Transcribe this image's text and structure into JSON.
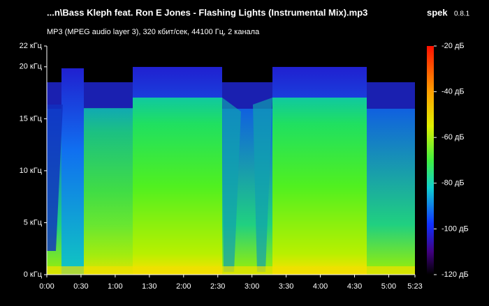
{
  "chart_data": {
    "type": "spectrogram",
    "title": "...n\\Bass Kleph feat. Ron E Jones - Flashing Lights (Instrumental Mix).mp3",
    "app_name": "spek",
    "app_version": "0.8.1",
    "subtitle": "MP3 (MPEG audio layer 3), 320 кбит/сек, 44100 Гц, 2 канала",
    "xlim": [
      0,
      323
    ],
    "xticks": [
      {
        "value": 0,
        "label": "0:00"
      },
      {
        "value": 30,
        "label": "0:30"
      },
      {
        "value": 60,
        "label": "1:00"
      },
      {
        "value": 90,
        "label": "1:30"
      },
      {
        "value": 120,
        "label": "2:00"
      },
      {
        "value": 150,
        "label": "2:30"
      },
      {
        "value": 180,
        "label": "3:00"
      },
      {
        "value": 210,
        "label": "3:30"
      },
      {
        "value": 240,
        "label": "4:00"
      },
      {
        "value": 270,
        "label": "4:30"
      },
      {
        "value": 300,
        "label": "5:00"
      },
      {
        "value": 323,
        "label": "5:23"
      }
    ],
    "ylim": [
      0,
      22
    ],
    "yticks": [
      {
        "value": 0,
        "label": "0 кГц"
      },
      {
        "value": 5,
        "label": "5 кГц"
      },
      {
        "value": 10,
        "label": "10 кГц"
      },
      {
        "value": 15,
        "label": "15 кГц"
      },
      {
        "value": 20,
        "label": "20 кГц"
      },
      {
        "value": 22,
        "label": "22 кГц"
      }
    ],
    "clim": [
      -120,
      -20
    ],
    "cticks": [
      {
        "value": -20,
        "label": "-20 дБ"
      },
      {
        "value": -40,
        "label": "-40 дБ"
      },
      {
        "value": -60,
        "label": "-60 дБ"
      },
      {
        "value": -80,
        "label": "-80 дБ"
      },
      {
        "value": -100,
        "label": "-100 дБ"
      },
      {
        "value": -120,
        "label": "-120 дБ"
      }
    ]
  }
}
